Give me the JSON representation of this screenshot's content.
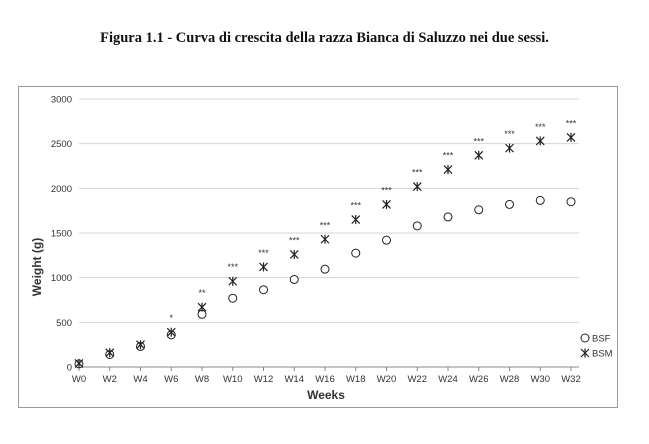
{
  "figure": {
    "caption": "Figura 1.1 - Curva di crescita della razza Bianca di Saluzzo nei due sessi."
  },
  "chart_data": {
    "type": "scatter",
    "title": "",
    "xlabel": "Weeks",
    "ylabel": "Weight (g)",
    "ylim": [
      0,
      3000
    ],
    "yticks": [
      "0",
      "500",
      "1000",
      "1500",
      "2000",
      "2500",
      "3000"
    ],
    "grid": "horizontal",
    "legend_position": "bottom-right",
    "categories": [
      "W0",
      "W2",
      "W4",
      "W6",
      "W8",
      "W10",
      "W12",
      "W14",
      "W16",
      "W18",
      "W20",
      "W22",
      "W24",
      "W26",
      "W28",
      "W30",
      "W32"
    ],
    "series": [
      {
        "name": "BSF",
        "marker": "circle",
        "values": [
          35,
          140,
          230,
          360,
          590,
          770,
          865,
          980,
          1095,
          1275,
          1420,
          1580,
          1680,
          1760,
          1820,
          1865,
          1850
        ]
      },
      {
        "name": "BSM",
        "marker": "asterisk",
        "values": [
          40,
          160,
          250,
          390,
          670,
          960,
          1120,
          1260,
          1430,
          1650,
          1820,
          2020,
          2210,
          2370,
          2450,
          2530,
          2570
        ]
      }
    ],
    "significance": [
      "",
      "",
      "",
      "*",
      "**",
      "***",
      "***",
      "***",
      "***",
      "***",
      "***",
      "***",
      "***",
      "***",
      "***",
      "***",
      "***"
    ],
    "colors": {
      "marker": "#222222",
      "grid": "#d6d6d6",
      "axis": "#888888"
    }
  }
}
